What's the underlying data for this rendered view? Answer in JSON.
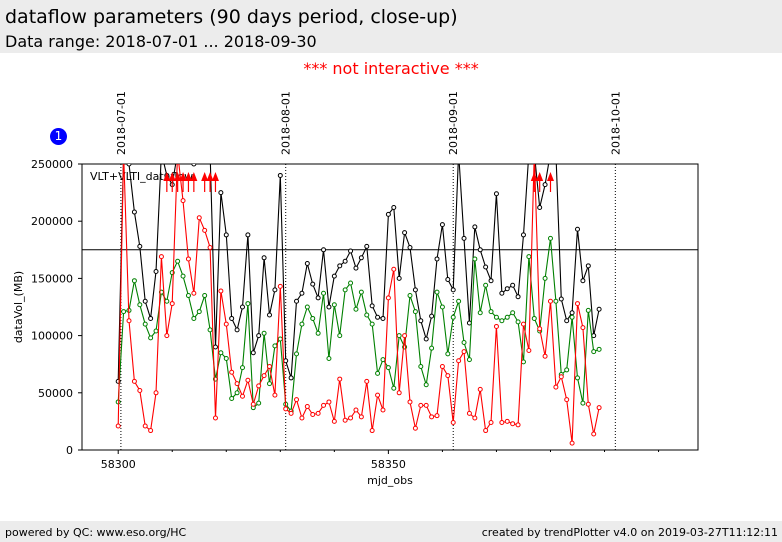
{
  "header": {
    "title": "dataflow parameters (90 days period, close-up)",
    "subtitle": "Data range: 2018-07-01 ... 2018-09-30"
  },
  "notice": "*** not interactive ***",
  "badge": "1",
  "footer": {
    "left": "powered by QC: www.eso.org/HC",
    "right": "created by trendPlotter v4.0 on 2019-03-27T11:12:11"
  },
  "colors": {
    "black": "#000000",
    "green": "#008000",
    "red": "#ff0000"
  },
  "chart_data": {
    "type": "line",
    "title": "",
    "xlabel": "mjd_obs",
    "ylabel": "dataVol_(MB)",
    "xlim": [
      58293.3,
      58407.3
    ],
    "ylim": [
      0,
      250000
    ],
    "grid": false,
    "legend": "none",
    "annotation": "VLT+VLTI_dataflow",
    "x_ticks": [
      {
        "x": 58300,
        "label": "58300"
      },
      {
        "x": 58350,
        "label": "58350"
      }
    ],
    "y_ticks": [
      0,
      50000,
      100000,
      150000,
      200000,
      250000
    ],
    "y_tick_labels": [
      "0",
      "50000",
      "100000",
      "150000",
      "200000",
      "250000"
    ],
    "reference_line": 175000,
    "date_markers": [
      {
        "x": 58300.5,
        "label": "2018-07-01"
      },
      {
        "x": 58331,
        "label": "2018-08-01"
      },
      {
        "x": 58362,
        "label": "2018-09-01"
      },
      {
        "x": 58392,
        "label": "2018-10-01"
      }
    ],
    "x": [
      58300,
      58301,
      58302,
      58303,
      58304,
      58305,
      58306,
      58307,
      58308,
      58309,
      58310,
      58311,
      58312,
      58313,
      58314,
      58315,
      58316,
      58317,
      58318,
      58319,
      58320,
      58321,
      58322,
      58323,
      58324,
      58325,
      58326,
      58327,
      58328,
      58329,
      58330,
      58331,
      58332,
      58333,
      58334,
      58335,
      58336,
      58337,
      58338,
      58339,
      58340,
      58341,
      58342,
      58343,
      58344,
      58345,
      58346,
      58347,
      58348,
      58349,
      58350,
      58351,
      58352,
      58353,
      58354,
      58355,
      58356,
      58357,
      58358,
      58359,
      58360,
      58361,
      58362,
      58363,
      58364,
      58365,
      58366,
      58367,
      58368,
      58369,
      58370,
      58371,
      58372,
      58373,
      58374,
      58375,
      58376,
      58377,
      58378,
      58379,
      58380,
      58381,
      58382,
      58383,
      58384,
      58385,
      58386,
      58387,
      58388,
      58389
    ],
    "series": [
      {
        "color": "#000000",
        "values": [
          60000,
          260000,
          250000,
          208000,
          178000,
          130000,
          115000,
          156000,
          260000,
          240000,
          232000,
          260000,
          260000,
          260000,
          250000,
          260000,
          260000,
          260000,
          90000,
          225000,
          188000,
          115000,
          105000,
          125000,
          188000,
          85000,
          100000,
          168000,
          118000,
          140000,
          240000,
          78000,
          63000,
          130000,
          137000,
          163000,
          145000,
          133000,
          175000,
          125000,
          152000,
          161000,
          165000,
          174000,
          159000,
          168000,
          178000,
          126000,
          116000,
          115000,
          206000,
          212000,
          150000,
          190000,
          177000,
          140000,
          113000,
          97000,
          117000,
          167000,
          197000,
          149000,
          140000,
          260000,
          185000,
          111000,
          195000,
          175000,
          160000,
          148000,
          224000,
          137000,
          141000,
          144000,
          134000,
          188000,
          260000,
          260000,
          212000,
          232000,
          260000,
          260000,
          132000,
          113000,
          120000,
          193000,
          148000,
          161000,
          100000,
          123000
        ]
      },
      {
        "color": "#008000",
        "values": [
          42000,
          121000,
          122000,
          148000,
          127000,
          110000,
          98000,
          104000,
          138000,
          130000,
          155000,
          165000,
          152000,
          135000,
          115000,
          121000,
          135000,
          105000,
          62000,
          85000,
          80000,
          45000,
          50000,
          72000,
          128000,
          37000,
          41000,
          102000,
          58000,
          91000,
          97000,
          40000,
          34000,
          84000,
          110000,
          125000,
          115000,
          102000,
          137000,
          80000,
          127000,
          100000,
          140000,
          146000,
          123000,
          138000,
          118000,
          110000,
          67000,
          79000,
          72000,
          54000,
          100000,
          90000,
          135000,
          121000,
          73000,
          57000,
          89000,
          138000,
          125000,
          84000,
          116000,
          130000,
          94000,
          79000,
          167000,
          120000,
          144000,
          121000,
          116000,
          113000,
          116000,
          120000,
          112000,
          77000,
          169000,
          115000,
          104000,
          150000,
          185000,
          130000,
          66000,
          70000,
          116000,
          63000,
          41000,
          122000,
          86000,
          88000
        ]
      },
      {
        "color": "#ff0000",
        "values": [
          21000,
          260000,
          113000,
          60000,
          52000,
          21000,
          17000,
          50000,
          169000,
          100000,
          128000,
          260000,
          218000,
          167000,
          137000,
          203000,
          192000,
          177000,
          28000,
          139000,
          110000,
          68000,
          58000,
          47000,
          61000,
          40000,
          56000,
          65000,
          73000,
          48000,
          143000,
          36000,
          32000,
          44000,
          28000,
          38000,
          31000,
          32000,
          39000,
          42000,
          25000,
          62000,
          26000,
          28000,
          35000,
          29000,
          60000,
          17000,
          48000,
          35000,
          133000,
          158000,
          50000,
          100000,
          42000,
          19000,
          39000,
          39000,
          29000,
          30000,
          73000,
          65000,
          24000,
          78000,
          86000,
          32000,
          28000,
          53000,
          17000,
          24000,
          108000,
          24000,
          25000,
          23000,
          22000,
          110000,
          87000,
          260000,
          106000,
          82000,
          130000,
          55000,
          64000,
          44000,
          6000,
          128000,
          107000,
          40000,
          14000,
          37000
        ]
      }
    ],
    "overflow_markers": [
      {
        "color": "#ff0000",
        "x": [
          58309,
          58310,
          58311,
          58312,
          58313,
          58314,
          58316,
          58317,
          58318,
          58377,
          58378,
          58380
        ]
      }
    ]
  }
}
